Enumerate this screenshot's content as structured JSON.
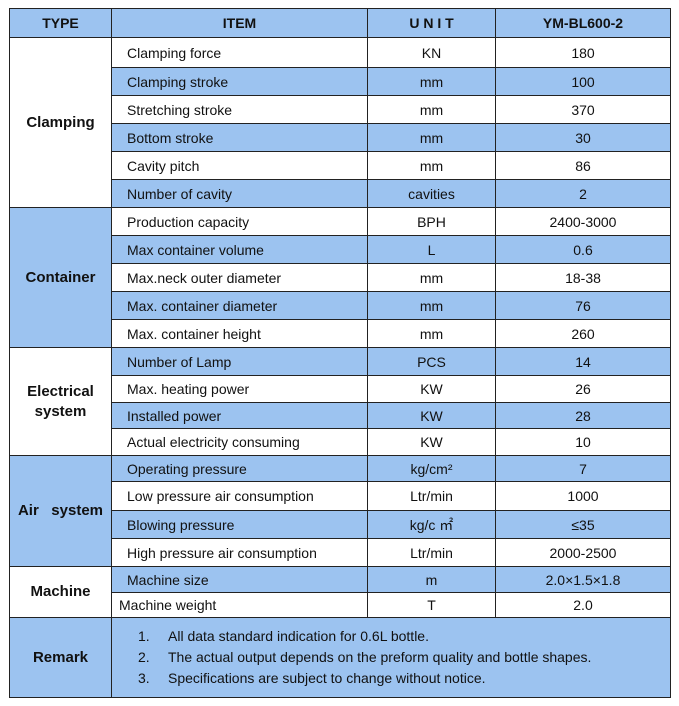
{
  "header": {
    "type": "TYPE",
    "item": "ITEM",
    "unit": "U N I T",
    "model": "YM-BL600-2"
  },
  "groups": [
    {
      "type": "Clamping",
      "rows": [
        {
          "item": "Clamping force",
          "unit": "KN",
          "value": "180"
        },
        {
          "item": "Clamping stroke",
          "unit": "mm",
          "value": "100"
        },
        {
          "item": "Stretching stroke",
          "unit": "mm",
          "value": "370"
        },
        {
          "item": "Bottom stroke",
          "unit": "mm",
          "value": "30"
        },
        {
          "item": "Cavity pitch",
          "unit": "mm",
          "value": "86"
        },
        {
          "item": "Number of cavity",
          "unit": "cavities",
          "value": "2"
        }
      ]
    },
    {
      "type": "Container",
      "rows": [
        {
          "item": "Production capacity",
          "unit": "BPH",
          "value": "2400-3000"
        },
        {
          "item": "Max container volume",
          "unit": "L",
          "value": "0.6"
        },
        {
          "item": "Max.neck outer diameter",
          "unit": "mm",
          "value": "18-38"
        },
        {
          "item": "Max. container diameter",
          "unit": "mm",
          "value": "76"
        },
        {
          "item": "Max. container height",
          "unit": "mm",
          "value": "260"
        }
      ]
    },
    {
      "type": "Electrical system",
      "rows": [
        {
          "item": "Number of Lamp",
          "unit": "PCS",
          "value": "14"
        },
        {
          "item": "Max. heating power",
          "unit": "KW",
          "value": "26"
        },
        {
          "item": "Installed power",
          "unit": "KW",
          "value": "28"
        },
        {
          "item": "Actual electricity consuming",
          "unit": "KW",
          "value": "10"
        }
      ]
    },
    {
      "type": "Air   system",
      "rows": [
        {
          "item": "Operating pressure",
          "unit": "kg/cm²",
          "value": "7"
        },
        {
          "item": "Low pressure air consumption",
          "unit": "Ltr/min",
          "value": "1000"
        },
        {
          "item": "Blowing pressure",
          "unit": "kg/c ㎡",
          "value": "≤35"
        },
        {
          "item": "High pressure air consumption",
          "unit": "Ltr/min",
          "value": "2000-2500"
        }
      ]
    },
    {
      "type": "Machine",
      "rows": [
        {
          "item": "Machine size",
          "unit": "m",
          "value": "2.0×1.5×1.8"
        },
        {
          "item": "Machine weight",
          "unit": "T",
          "value": "2.0"
        }
      ]
    }
  ],
  "remark": {
    "type": "Remark",
    "items": [
      {
        "n": "1.",
        "text": "All data standard indication for 0.6L bottle."
      },
      {
        "n": "2.",
        "text": "The actual output depends on the preform quality and bottle shapes."
      },
      {
        "n": "3.",
        "text": "Specifications are subject to change without notice."
      }
    ]
  }
}
